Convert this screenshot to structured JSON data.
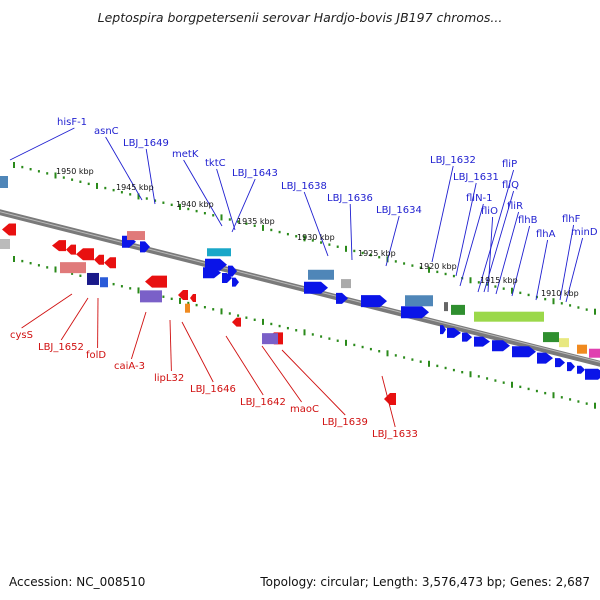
{
  "title": "Leptospira borgpetersenii serovar Hardjo-bovis JB197 chromos...",
  "footer": {
    "accession": "Accession: NC_008510",
    "stats": "Topology: circular; Length: 3,576,473 bp; Genes: 2,687"
  },
  "colors": {
    "forward_label": "#1f1fd0",
    "reverse_label": "#d01010",
    "forward_gene": "#0a14e8",
    "reverse_gene": "#e81010",
    "backbone": "#7a7a7a",
    "tick": "#2a8a1a"
  },
  "ticks": [
    {
      "label": "1950 kbp"
    },
    {
      "label": "1945 kbp"
    },
    {
      "label": "1940 kbp"
    },
    {
      "label": "1935 kbp"
    },
    {
      "label": "1930 kbp"
    },
    {
      "label": "1925 kbp"
    },
    {
      "label": "1920 kbp"
    },
    {
      "label": "1915 kbp"
    },
    {
      "label": "1910 kbp"
    }
  ],
  "forward_labels": [
    {
      "name": "hisF-1"
    },
    {
      "name": "asnC"
    },
    {
      "name": "LBJ_1649"
    },
    {
      "name": "metK"
    },
    {
      "name": "tktC"
    },
    {
      "name": "LBJ_1643"
    },
    {
      "name": "LBJ_1638"
    },
    {
      "name": "LBJ_1636"
    },
    {
      "name": "LBJ_1634"
    },
    {
      "name": "LBJ_1632"
    },
    {
      "name": "LBJ_1631"
    },
    {
      "name": "fliN-1"
    },
    {
      "name": "fliP"
    },
    {
      "name": "fliQ"
    },
    {
      "name": "fliO"
    },
    {
      "name": "fliR"
    },
    {
      "name": "flhB"
    },
    {
      "name": "flhA"
    },
    {
      "name": "flhF"
    },
    {
      "name": "minD"
    }
  ],
  "reverse_labels": [
    {
      "name": "cysS"
    },
    {
      "name": "LBJ_1652"
    },
    {
      "name": "folD"
    },
    {
      "name": "caiA-3"
    },
    {
      "name": "lipL32"
    },
    {
      "name": "LBJ_1646"
    },
    {
      "name": "LBJ_1642"
    },
    {
      "name": "maoC"
    },
    {
      "name": "LBJ_1639"
    },
    {
      "name": "LBJ_1633"
    }
  ]
}
